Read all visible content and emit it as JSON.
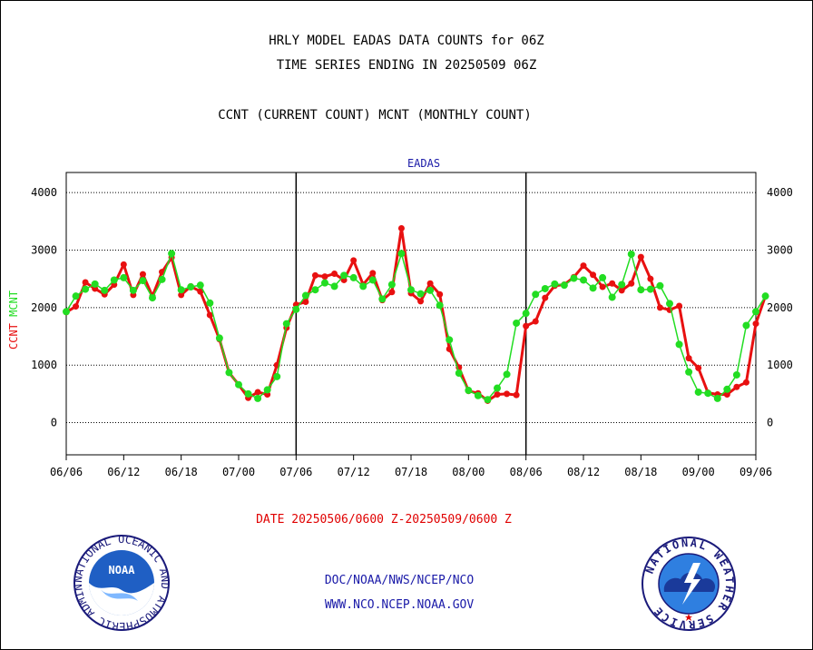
{
  "header": {
    "line1": "HRLY MODEL EADAS DATA COUNTS for 06Z",
    "line2": "TIME SERIES ENDING IN 20250509 06Z",
    "line3": "CCNT (CURRENT COUNT) MCNT (MONTHLY COUNT)"
  },
  "footer": {
    "date_range": "DATE 20250506/0600 Z-20250509/0600 Z",
    "credit1": "DOC/NOAA/NWS/NCEP/NCO",
    "credit2": "WWW.NCO.NCEP.NOAA.GOV",
    "noaa_logo_text": "NOAA",
    "noaa_ring_text": "NATIONAL OCEANIC AND ATMOSPHERIC ADMINISTRATION • U.S. DEPARTMENT OF COMMERCE •",
    "nws_ring_text": "NATIONAL WEATHER SERVICE"
  },
  "colors": {
    "ccnt": "#e81010",
    "mcnt": "#22dd22",
    "title_blue": "#1a1aa8",
    "date_red": "#e00000"
  },
  "chart_data": {
    "type": "line",
    "title": "EADAS",
    "ylabel_parts": [
      {
        "text": "CCNT",
        "color": "#e81010"
      },
      {
        "text": "MCNT",
        "color": "#22dd22"
      }
    ],
    "ylim": [
      -560,
      4350
    ],
    "yticks": [
      0,
      1000,
      2000,
      3000,
      4000
    ],
    "x_tick_labels": [
      "06/06",
      "06/12",
      "06/18",
      "07/00",
      "07/06",
      "07/12",
      "07/18",
      "08/00",
      "08/06",
      "08/12",
      "08/18",
      "09/00",
      "09/06"
    ],
    "x_hours_per_tick": 6,
    "day_separators_at_hour": [
      24,
      48
    ],
    "grid": "horizontal-dotted",
    "series": [
      {
        "name": "CCNT",
        "color": "#e81010",
        "values": [
          1920,
          2020,
          2440,
          2330,
          2230,
          2400,
          2750,
          2220,
          2580,
          2200,
          2620,
          2870,
          2220,
          2370,
          2280,
          1870,
          1450,
          870,
          660,
          430,
          530,
          490,
          1000,
          1650,
          2050,
          2100,
          2560,
          2540,
          2590,
          2480,
          2820,
          2400,
          2600,
          2130,
          2270,
          3380,
          2250,
          2110,
          2420,
          2230,
          1280,
          960,
          550,
          510,
          380,
          490,
          500,
          480,
          1680,
          1760,
          2170,
          2380,
          2400,
          2530,
          2730,
          2570,
          2360,
          2420,
          2300,
          2420,
          2880,
          2500,
          2000,
          1960,
          2030,
          1120,
          950,
          520,
          490,
          490,
          620,
          700,
          1720,
          2200
        ]
      },
      {
        "name": "MCNT",
        "color": "#22dd22",
        "values": [
          1930,
          2200,
          2320,
          2410,
          2300,
          2480,
          2520,
          2300,
          2470,
          2170,
          2490,
          2940,
          2310,
          2360,
          2390,
          2080,
          1470,
          870,
          660,
          500,
          420,
          570,
          800,
          1720,
          1970,
          2210,
          2310,
          2430,
          2370,
          2560,
          2520,
          2370,
          2480,
          2150,
          2400,
          2940,
          2310,
          2240,
          2300,
          2040,
          1440,
          860,
          560,
          470,
          400,
          600,
          840,
          1730,
          1900,
          2230,
          2330,
          2410,
          2390,
          2510,
          2480,
          2340,
          2520,
          2180,
          2400,
          2930,
          2310,
          2320,
          2380,
          2070,
          1360,
          880,
          530,
          510,
          420,
          580,
          830,
          1690,
          1930,
          2200
        ]
      }
    ]
  }
}
